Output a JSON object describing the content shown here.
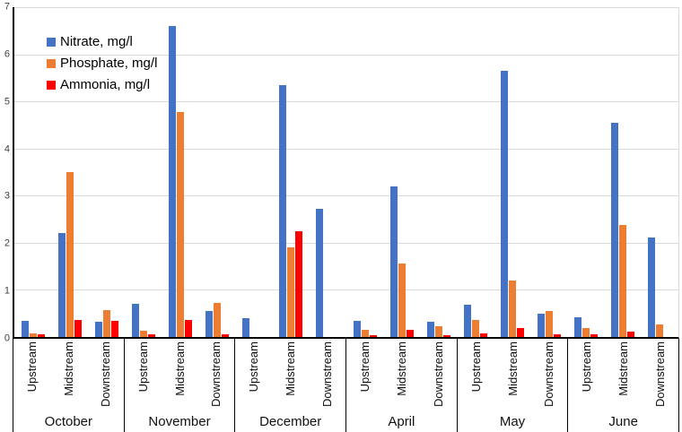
{
  "chart_data": {
    "type": "bar",
    "title": "",
    "xlabel": "",
    "ylabel": "",
    "ylim": [
      0,
      7
    ],
    "yticks": [
      0,
      1,
      2,
      3,
      4,
      5,
      6,
      7
    ],
    "grid": true,
    "legend_position": "top-left-inside",
    "series": [
      {
        "name": "Nitrate, mg/l",
        "color": "#4472C4"
      },
      {
        "name": "Phosphate, mg/l",
        "color": "#ED7D31"
      },
      {
        "name": "Ammonia, mg/l",
        "color": "#FF0000"
      }
    ],
    "station_categories": [
      "Upstream",
      "Midstream",
      "Downstream"
    ],
    "months": [
      {
        "label": "October",
        "stations": [
          {
            "label": "Upstream",
            "values": [
              0.35,
              0.08,
              0.06
            ]
          },
          {
            "label": "Midstream",
            "values": [
              2.2,
              3.5,
              0.37
            ]
          },
          {
            "label": "Downstream",
            "values": [
              0.32,
              0.57,
              0.35
            ]
          }
        ]
      },
      {
        "label": "November",
        "stations": [
          {
            "label": "Upstream",
            "values": [
              0.7,
              0.13,
              0.06
            ]
          },
          {
            "label": "Midstream",
            "values": [
              6.6,
              4.78,
              0.36
            ]
          },
          {
            "label": "Downstream",
            "values": [
              0.55,
              0.72,
              0.05
            ]
          }
        ]
      },
      {
        "label": "December",
        "stations": [
          {
            "label": "Upstream",
            "values": [
              0.4,
              0,
              0
            ]
          },
          {
            "label": "Midstream",
            "values": [
              5.35,
              1.9,
              2.25
            ]
          },
          {
            "label": "Downstream",
            "values": [
              2.72,
              0,
              0
            ]
          }
        ]
      },
      {
        "label": "April",
        "stations": [
          {
            "label": "Upstream",
            "values": [
              0.34,
              0.15,
              0.04
            ]
          },
          {
            "label": "Midstream",
            "values": [
              3.2,
              1.56,
              0.16
            ]
          },
          {
            "label": "Downstream",
            "values": [
              0.33,
              0.23,
              0.03
            ]
          }
        ]
      },
      {
        "label": "May",
        "stations": [
          {
            "label": "Upstream",
            "values": [
              0.69,
              0.36,
              0.08
            ]
          },
          {
            "label": "Midstream",
            "values": [
              5.65,
              1.2,
              0.2
            ]
          },
          {
            "label": "Downstream",
            "values": [
              0.49,
              0.55,
              0.06
            ]
          }
        ]
      },
      {
        "label": "June",
        "stations": [
          {
            "label": "Upstream",
            "values": [
              0.42,
              0.2,
              0.05
            ]
          },
          {
            "label": "Midstream",
            "values": [
              4.55,
              2.38,
              0.11
            ]
          },
          {
            "label": "Downstream",
            "values": [
              2.12,
              0.27,
              0
            ]
          }
        ]
      }
    ],
    "colors": {
      "axis": "#000000",
      "gridline": "#D9D9D9",
      "tick_text": "#404040",
      "label_text": "#111111",
      "background": "#FFFFFF"
    }
  }
}
